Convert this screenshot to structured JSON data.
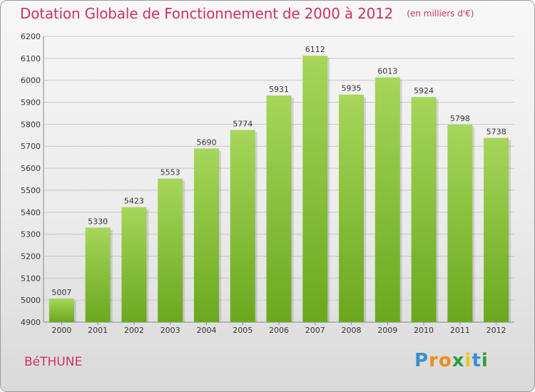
{
  "title": "Dotation Globale de Fonctionnement de 2000 à 2012",
  "subtitle": "(en milliers d'€)",
  "commune": "BéTHUNE",
  "logo": {
    "letters": [
      "P",
      "r",
      "o",
      "x",
      "i",
      "t",
      "i"
    ],
    "colors": [
      "#3a8fd0",
      "#f08a1c",
      "#f08a1c",
      "#2e9e3a",
      "#f0c419",
      "#3a8fd0",
      "#2e9e3a"
    ]
  },
  "colors": {
    "bar_top": "#a6d65a",
    "bar_bottom": "#6aa81e",
    "title": "#cc3366",
    "grid": "#c8c8c8"
  },
  "chart_data": {
    "type": "bar",
    "categories": [
      "2000",
      "2001",
      "2002",
      "2003",
      "2004",
      "2005",
      "2006",
      "2007",
      "2008",
      "2009",
      "2010",
      "2011",
      "2012"
    ],
    "values": [
      5007,
      5330,
      5423,
      5553,
      5690,
      5774,
      5931,
      6112,
      5935,
      6013,
      5924,
      5798,
      5738
    ],
    "ylim": [
      4900,
      6200
    ],
    "yticks": [
      4900,
      5000,
      5100,
      5200,
      5300,
      5400,
      5500,
      5600,
      5700,
      5800,
      5900,
      6000,
      6100,
      6200
    ],
    "grid": true,
    "xlabel": "",
    "ylabel": ""
  }
}
